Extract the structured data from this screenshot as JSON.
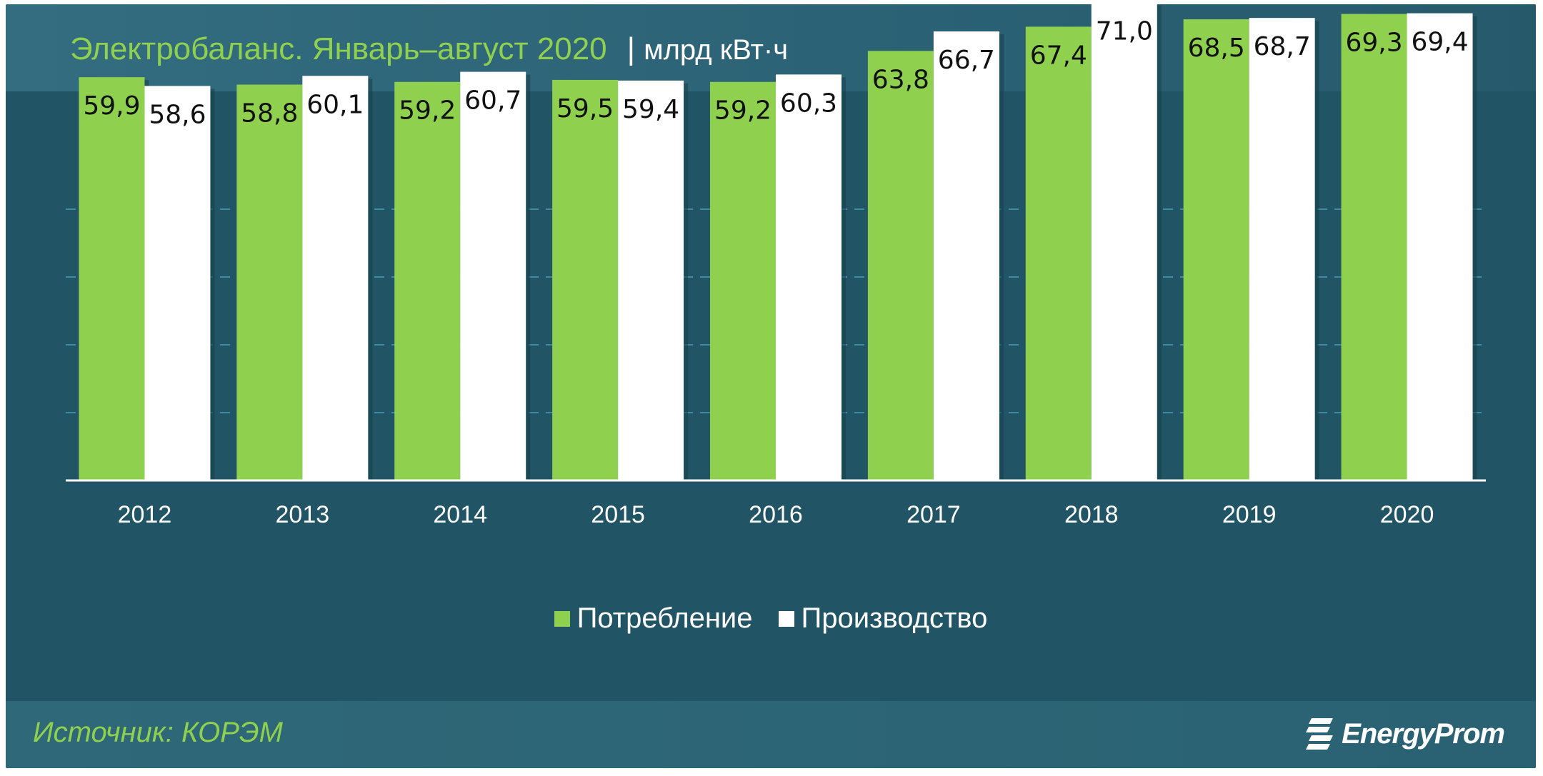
{
  "header": {
    "title": "Электробаланс. Январь–август 2020",
    "separator": "|",
    "unit": "млрд кВт·ч"
  },
  "footer": {
    "source": "Источник: КОРЭМ",
    "logo": "EnergyProm"
  },
  "colors": {
    "consumption": "#8fd14f",
    "production": "#ffffff",
    "background": "#215565",
    "gridline": "#3f8aa0"
  },
  "chart_data": {
    "type": "bar",
    "categories": [
      "2012",
      "2013",
      "2014",
      "2015",
      "2016",
      "2017",
      "2018",
      "2019",
      "2020"
    ],
    "series": [
      {
        "name": "Потребление",
        "values": [
          59.9,
          58.8,
          59.2,
          59.5,
          59.2,
          63.8,
          67.4,
          68.5,
          69.3
        ],
        "labels": [
          "59,9",
          "58,8",
          "59,2",
          "59,5",
          "59,2",
          "63,8",
          "67,4",
          "68,5",
          "69,3"
        ]
      },
      {
        "name": "Производство",
        "values": [
          58.6,
          60.1,
          60.7,
          59.4,
          60.3,
          66.7,
          71.0,
          68.7,
          69.4
        ],
        "labels": [
          "58,6",
          "60,1",
          "60,7",
          "59,4",
          "60,3",
          "66,7",
          "71,0",
          "68,7",
          "69,4"
        ]
      }
    ],
    "title": "Электробаланс. Январь–август 2020",
    "ylabel": "млрд кВт·ч",
    "ylim": [
      0,
      80
    ],
    "grid": true,
    "legend": "bottom-center"
  }
}
